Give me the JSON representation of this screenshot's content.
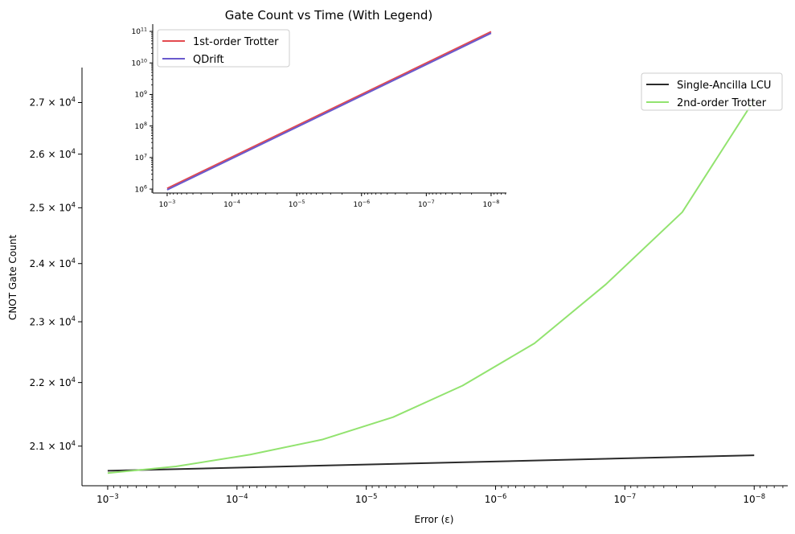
{
  "title": "Gate Count vs Time (With Legend)",
  "chart_data": [
    {
      "id": "main",
      "type": "line",
      "xlabel": "Error (ε)",
      "ylabel": "CNOT Gate Count",
      "xscale": "log",
      "yscale": "log",
      "x_inverted": true,
      "xlim": [
        0.00158,
        5.5e-09
      ],
      "ylim": [
        20400,
        27700
      ],
      "xticks": [
        {
          "value": 0.001,
          "mant": "10",
          "exp": "−3"
        },
        {
          "value": 0.0001,
          "mant": "10",
          "exp": "−4"
        },
        {
          "value": 1e-05,
          "mant": "10",
          "exp": "−5"
        },
        {
          "value": 1e-06,
          "mant": "10",
          "exp": "−6"
        },
        {
          "value": 1e-07,
          "mant": "10",
          "exp": "−7"
        },
        {
          "value": 1e-08,
          "mant": "10",
          "exp": "−8"
        }
      ],
      "yticks": [
        {
          "value": 21000,
          "mant": "2.1 × 10",
          "exp": "4"
        },
        {
          "value": 22000,
          "mant": "2.2 × 10",
          "exp": "4"
        },
        {
          "value": 23000,
          "mant": "2.3 × 10",
          "exp": "4"
        },
        {
          "value": 24000,
          "mant": "2.4 × 10",
          "exp": "4"
        },
        {
          "value": 25000,
          "mant": "2.5 × 10",
          "exp": "4"
        },
        {
          "value": 26000,
          "mant": "2.6 × 10",
          "exp": "4"
        },
        {
          "value": 27000,
          "mant": "2.7 × 10",
          "exp": "4"
        }
      ],
      "legend_position": "upper right",
      "series": [
        {
          "name": "Single-Ancilla LCU",
          "color": "#2b2b2b",
          "x": [
            0.001,
            1e-08
          ],
          "y": [
            20625,
            20860
          ]
        },
        {
          "name": "2nd-order Trotter",
          "color": "#92e36f",
          "x": [
            0.001,
            0.000297,
            7.9e-05,
            2.2e-05,
            6.2e-06,
            1.8e-06,
            5e-07,
            1.4e-07,
            3.6e-08,
            1e-08
          ],
          "y": [
            20590,
            20690,
            20870,
            21100,
            21450,
            21950,
            22640,
            23640,
            24920,
            27050
          ]
        }
      ]
    },
    {
      "id": "inset",
      "type": "line",
      "xscale": "log",
      "yscale": "log",
      "x_inverted": true,
      "xlim": [
        0.00167,
        5.8e-09
      ],
      "ylim": [
        750000,
        170000000000
      ],
      "xticks": [
        {
          "value": 0.001,
          "mant": "10",
          "exp": "−3"
        },
        {
          "value": 0.0001,
          "mant": "10",
          "exp": "−4"
        },
        {
          "value": 1e-05,
          "mant": "10",
          "exp": "−5"
        },
        {
          "value": 1e-06,
          "mant": "10",
          "exp": "−6"
        },
        {
          "value": 1e-07,
          "mant": "10",
          "exp": "−7"
        },
        {
          "value": 1e-08,
          "mant": "10",
          "exp": "−8"
        }
      ],
      "yticks": [
        {
          "value": 1000000,
          "mant": "10",
          "exp": "6"
        },
        {
          "value": 10000000,
          "mant": "10",
          "exp": "7"
        },
        {
          "value": 100000000,
          "mant": "10",
          "exp": "8"
        },
        {
          "value": 1000000000,
          "mant": "10",
          "exp": "9"
        },
        {
          "value": 10000000000,
          "mant": "10",
          "exp": "10"
        },
        {
          "value": 100000000000,
          "mant": "10",
          "exp": "11"
        }
      ],
      "legend_position": "upper left",
      "series": [
        {
          "name": "1st-order Trotter",
          "color": "#e34a4f",
          "x": [
            0.001,
            1e-08
          ],
          "y": [
            1050000,
            98000000000
          ]
        },
        {
          "name": "QDrift",
          "color": "#6a5acd",
          "x": [
            0.001,
            1e-08
          ],
          "y": [
            950000,
            88000000000
          ]
        }
      ]
    }
  ]
}
